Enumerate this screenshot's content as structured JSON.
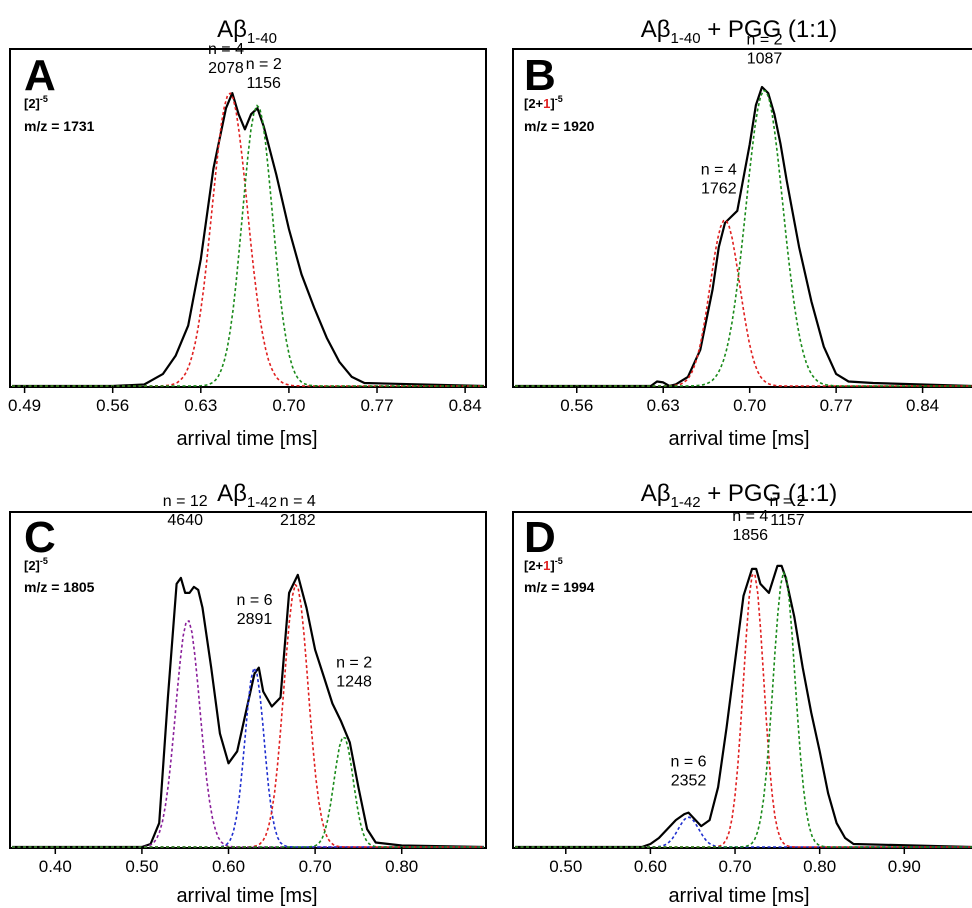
{
  "chart_data": [
    {
      "type": "line",
      "panel_letter": "A",
      "title_main": "Aβ",
      "title_sub": "1-40",
      "title_suffix": "",
      "ion_base": "[2]",
      "ion_red": "",
      "ion_close": "",
      "ion_charge": "-5",
      "mz": "m/z = 1731",
      "xlabel": "arrival time [ms]",
      "xlim": [
        0.48,
        0.855
      ],
      "xticks": [
        "0.49",
        "0.56",
        "0.63",
        "0.70",
        "0.77",
        "0.84"
      ],
      "series": [
        {
          "color": "#000000",
          "dashed": false,
          "x": [
            0.48,
            0.56,
            0.585,
            0.6,
            0.61,
            0.62,
            0.63,
            0.64,
            0.65,
            0.655,
            0.66,
            0.665,
            0.67,
            0.675,
            0.68,
            0.69,
            0.7,
            0.71,
            0.72,
            0.73,
            0.74,
            0.75,
            0.76,
            0.855
          ],
          "y": [
            0,
            0,
            0.005,
            0.04,
            0.1,
            0.2,
            0.42,
            0.72,
            0.92,
            0.97,
            0.9,
            0.85,
            0.9,
            0.92,
            0.86,
            0.7,
            0.52,
            0.37,
            0.26,
            0.16,
            0.08,
            0.03,
            0.01,
            0
          ]
        },
        {
          "color": "#e02020",
          "dashed": true,
          "gauss": {
            "mu": 0.653,
            "sigma": 0.014,
            "amp": 0.97
          }
        },
        {
          "color": "#1a8a1a",
          "dashed": true,
          "gauss": {
            "mu": 0.675,
            "sigma": 0.012,
            "amp": 0.93
          }
        }
      ],
      "annotations": [
        {
          "n": "n = 4",
          "ccs": "2078",
          "x": 0.65,
          "y": 1.1
        },
        {
          "n": "n = 2",
          "ccs": "1156",
          "x": 0.68,
          "y": 1.05
        }
      ]
    },
    {
      "type": "line",
      "panel_letter": "B",
      "title_main": "Aβ",
      "title_sub": "1-40",
      "title_suffix": " + PGG (1:1)",
      "ion_base": "[2+",
      "ion_red": "1",
      "ion_close": "]",
      "ion_charge": "-5",
      "mz": "m/z = 1920",
      "xlabel": "arrival time [ms]",
      "xlim": [
        0.51,
        0.88
      ],
      "xticks": [
        "0.56",
        "0.63",
        "0.70",
        "0.77",
        "0.84"
      ],
      "series": [
        {
          "color": "#000000",
          "dashed": false,
          "x": [
            0.51,
            0.62,
            0.625,
            0.63,
            0.635,
            0.64,
            0.65,
            0.66,
            0.67,
            0.675,
            0.68,
            0.685,
            0.69,
            0.7,
            0.705,
            0.71,
            0.715,
            0.72,
            0.725,
            0.73,
            0.74,
            0.75,
            0.76,
            0.77,
            0.78,
            0.8,
            0.88
          ],
          "y": [
            0,
            0,
            0.015,
            0.012,
            0.0,
            0.005,
            0.03,
            0.12,
            0.32,
            0.46,
            0.54,
            0.56,
            0.58,
            0.8,
            0.93,
            0.99,
            0.97,
            0.9,
            0.8,
            0.68,
            0.46,
            0.28,
            0.13,
            0.04,
            0.015,
            0.01,
            0
          ]
        },
        {
          "color": "#e02020",
          "dashed": true,
          "gauss": {
            "mu": 0.68,
            "sigma": 0.012,
            "amp": 0.55
          }
        },
        {
          "color": "#1a8a1a",
          "dashed": true,
          "gauss": {
            "mu": 0.712,
            "sigma": 0.015,
            "amp": 0.98
          }
        }
      ],
      "annotations": [
        {
          "n": "n = 4",
          "ccs": "1762",
          "x": 0.675,
          "y": 0.7
        },
        {
          "n": "n = 2",
          "ccs": "1087",
          "x": 0.712,
          "y": 1.13
        }
      ]
    },
    {
      "type": "line",
      "panel_letter": "C",
      "title_main": "Aβ",
      "title_sub": "1-42",
      "title_suffix": "",
      "ion_base": "[2]",
      "ion_red": "",
      "ion_close": "",
      "ion_charge": "-5",
      "mz": "m/z = 1805",
      "xlabel": "arrival time [ms]",
      "xlim": [
        0.35,
        0.895
      ],
      "xticks": [
        "0.40",
        "0.50",
        "0.60",
        "0.70",
        "0.80"
      ],
      "series": [
        {
          "color": "#000000",
          "dashed": false,
          "x": [
            0.35,
            0.5,
            0.51,
            0.52,
            0.53,
            0.54,
            0.545,
            0.55,
            0.555,
            0.56,
            0.565,
            0.57,
            0.58,
            0.59,
            0.6,
            0.61,
            0.62,
            0.63,
            0.635,
            0.64,
            0.65,
            0.66,
            0.67,
            0.68,
            0.69,
            0.7,
            0.71,
            0.72,
            0.73,
            0.74,
            0.75,
            0.76,
            0.77,
            0.8,
            0.895
          ],
          "y": [
            0,
            0,
            0.01,
            0.08,
            0.5,
            0.88,
            0.9,
            0.85,
            0.85,
            0.87,
            0.86,
            0.8,
            0.6,
            0.38,
            0.28,
            0.32,
            0.45,
            0.58,
            0.6,
            0.52,
            0.47,
            0.5,
            0.85,
            0.91,
            0.8,
            0.66,
            0.57,
            0.48,
            0.42,
            0.35,
            0.2,
            0.06,
            0.015,
            0.005,
            0
          ]
        },
        {
          "color": "#8a1f9a",
          "dashed": true,
          "gauss": {
            "mu": 0.553,
            "sigma": 0.014,
            "amp": 0.76
          }
        },
        {
          "color": "#1f2fcf",
          "dashed": true,
          "gauss": {
            "mu": 0.63,
            "sigma": 0.011,
            "amp": 0.6
          }
        },
        {
          "color": "#e02020",
          "dashed": true,
          "gauss": {
            "mu": 0.678,
            "sigma": 0.014,
            "amp": 0.88
          }
        },
        {
          "color": "#1a8a1a",
          "dashed": true,
          "gauss": {
            "mu": 0.733,
            "sigma": 0.011,
            "amp": 0.37
          }
        }
      ],
      "annotations": [
        {
          "n": "n = 12",
          "ccs": "4640",
          "x": 0.55,
          "y": 1.14
        },
        {
          "n": "n = 6",
          "ccs": "2891",
          "x": 0.63,
          "y": 0.81
        },
        {
          "n": "n = 4",
          "ccs": "2182",
          "x": 0.68,
          "y": 1.14
        },
        {
          "n": "n = 2",
          "ccs": "1248",
          "x": 0.745,
          "y": 0.6
        }
      ]
    },
    {
      "type": "line",
      "panel_letter": "D",
      "title_main": "Aβ",
      "title_sub": "1-42",
      "title_suffix": " + PGG (1:1)",
      "ion_base": "[2+",
      "ion_red": "1",
      "ion_close": "]",
      "ion_charge": "-5",
      "mz": "m/z = 1994",
      "xlabel": "arrival time [ms]",
      "xlim": [
        0.44,
        0.98
      ],
      "xticks": [
        "0.50",
        "0.60",
        "0.70",
        "0.80",
        "0.90"
      ],
      "series": [
        {
          "color": "#000000",
          "dashed": false,
          "x": [
            0.44,
            0.59,
            0.6,
            0.61,
            0.62,
            0.63,
            0.64,
            0.645,
            0.65,
            0.66,
            0.67,
            0.68,
            0.69,
            0.7,
            0.71,
            0.72,
            0.725,
            0.73,
            0.74,
            0.75,
            0.755,
            0.76,
            0.77,
            0.78,
            0.79,
            0.8,
            0.81,
            0.82,
            0.83,
            0.84,
            0.98
          ],
          "y": [
            0,
            0,
            0.01,
            0.03,
            0.06,
            0.09,
            0.11,
            0.115,
            0.1,
            0.07,
            0.09,
            0.2,
            0.4,
            0.62,
            0.84,
            0.93,
            0.93,
            0.88,
            0.85,
            0.94,
            0.94,
            0.9,
            0.77,
            0.6,
            0.45,
            0.32,
            0.18,
            0.08,
            0.03,
            0.01,
            0
          ]
        },
        {
          "color": "#1f2fcf",
          "dashed": true,
          "gauss": {
            "mu": 0.645,
            "sigma": 0.012,
            "amp": 0.1
          }
        },
        {
          "color": "#e02020",
          "dashed": true,
          "gauss": {
            "mu": 0.722,
            "sigma": 0.012,
            "amp": 0.92
          }
        },
        {
          "color": "#1a8a1a",
          "dashed": true,
          "gauss": {
            "mu": 0.758,
            "sigma": 0.013,
            "amp": 0.92
          }
        }
      ],
      "annotations": [
        {
          "n": "n = 6",
          "ccs": "2352",
          "x": 0.645,
          "y": 0.27
        },
        {
          "n": "n = 4",
          "ccs": "1856",
          "x": 0.718,
          "y": 1.09
        },
        {
          "n": "n = 2",
          "ccs": "1157",
          "x": 0.762,
          "y": 1.14
        }
      ]
    }
  ]
}
